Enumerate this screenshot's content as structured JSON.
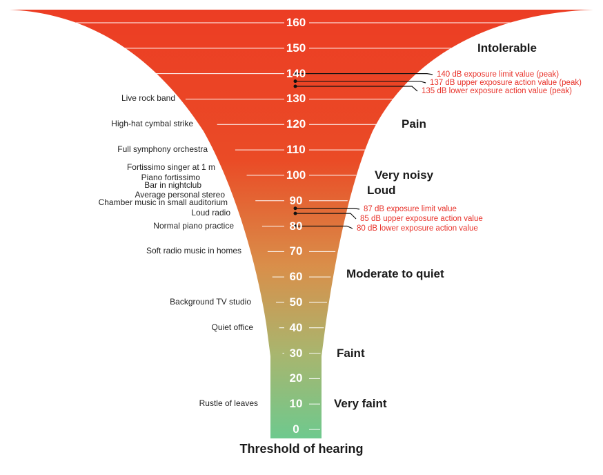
{
  "colors": {
    "top": "#ec3d24",
    "upper": "#ea4b26",
    "middle": "#d98f4a",
    "lower": "#a9b56e",
    "bottom": "#6ec98e",
    "limit_text": "#e8322a",
    "line": "#111111"
  },
  "scale": {
    "ticks": [
      "160",
      "150",
      "140",
      "130",
      "120",
      "110",
      "100",
      "90",
      "80",
      "70",
      "60",
      "50",
      "40",
      "30",
      "20",
      "10",
      "0"
    ]
  },
  "sources": [
    {
      "label": "Live rock band",
      "db": 130
    },
    {
      "label": "High-hat cymbal strike",
      "db": 120
    },
    {
      "label": "Full symphony orchestra",
      "db": 110
    },
    {
      "label": "Fortissimo singer at 1 m",
      "db": 103
    },
    {
      "label": "Piano fortissimo",
      "db": 99
    },
    {
      "label": "Bar in nightclub",
      "db": 96
    },
    {
      "label": "Average personal stereo",
      "db": 92
    },
    {
      "label": "Chamber music in small auditorium",
      "db": 89
    },
    {
      "label": "Loud radio",
      "db": 85
    },
    {
      "label": "Normal piano practice",
      "db": 80
    },
    {
      "label": "Soft radio music in homes",
      "db": 70
    },
    {
      "label": "Background TV studio",
      "db": 50
    },
    {
      "label": "Quiet office",
      "db": 40
    },
    {
      "label": "Rustle of leaves",
      "db": 10
    }
  ],
  "levels": [
    {
      "label": "Intolerable",
      "db": 150
    },
    {
      "label": "Pain",
      "db": 120
    },
    {
      "label": "Very noisy",
      "db": 100
    },
    {
      "label": "Loud",
      "db": 94
    },
    {
      "label": "Moderate to quiet",
      "db": 61
    },
    {
      "label": "Faint",
      "db": 30
    },
    {
      "label": "Very faint",
      "db": 10
    }
  ],
  "limits": [
    {
      "label": "140 dB exposure limit value (peak)",
      "db": 140
    },
    {
      "label": "137 dB upper exposure action value (peak)",
      "db": 137
    },
    {
      "label": "135 dB lower exposure action value (peak)",
      "db": 135
    },
    {
      "label": "87 dB exposure limit value",
      "db": 87
    },
    {
      "label": "85 dB upper exposure action value",
      "db": 85
    },
    {
      "label": "80 dB lower exposure action value",
      "db": 80
    }
  ],
  "footer": "Threshold of hearing"
}
